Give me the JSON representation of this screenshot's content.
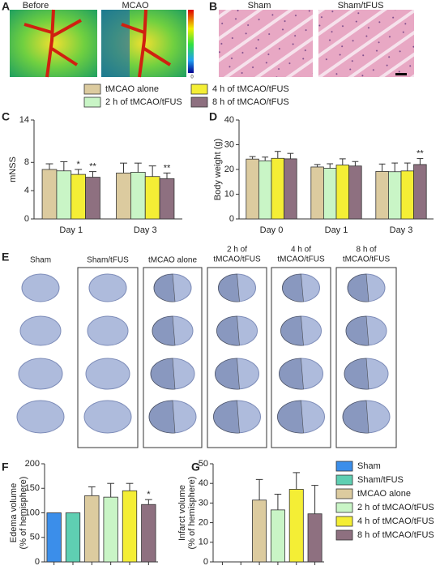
{
  "panel_labels": [
    "A",
    "B",
    "C",
    "D",
    "E",
    "F",
    "G"
  ],
  "panel_a": {
    "titles": [
      "Before",
      "MCAO"
    ],
    "colorbar_min": "0"
  },
  "panel_b": {
    "titles": [
      "Sham",
      "Sham/tFUS"
    ]
  },
  "panel_e": {
    "headings": [
      [
        "Sham"
      ],
      [
        "Sham/tFUS"
      ],
      [
        "tMCAO alone"
      ],
      [
        "2 h of",
        "tMCAO/tFUS"
      ],
      [
        "4 h of",
        "tMCAO/tFUS"
      ],
      [
        "8 h of",
        "tMCAO/tFUS"
      ]
    ]
  },
  "chart_data": [
    {
      "type": "bar",
      "ylabel": [
        "mNSS"
      ],
      "categories": [
        "Day 1",
        "Day 3"
      ],
      "ylim": [
        0,
        14
      ],
      "yticks": [
        0,
        4,
        8,
        14
      ],
      "series": [
        {
          "name": "tMCAO alone",
          "color": "#dccb9f",
          "values": [
            7.0,
            6.5
          ],
          "errors": [
            0.8,
            1.4
          ],
          "annotations": [
            null,
            null
          ]
        },
        {
          "name": "2 h of tMCAO/tFUS",
          "color": "#c9f5c6",
          "values": [
            6.8,
            6.6
          ],
          "errors": [
            1.3,
            1.3
          ],
          "annotations": [
            null,
            null
          ]
        },
        {
          "name": "4 h of tMCAO/tFUS",
          "color": "#f4ee35",
          "values": [
            6.3,
            6.0
          ],
          "errors": [
            0.7,
            1.5
          ],
          "annotations": [
            "*",
            null
          ]
        },
        {
          "name": "8 h of tMCAO/tFUS",
          "color": "#8e7080",
          "values": [
            5.9,
            5.7
          ],
          "errors": [
            0.8,
            0.8
          ],
          "annotations": [
            "**",
            "**"
          ]
        }
      ]
    },
    {
      "type": "bar",
      "ylabel": [
        "Body weight (g)"
      ],
      "categories": [
        "Day 0",
        "Day 1",
        "Day 3"
      ],
      "ylim": [
        0,
        40
      ],
      "yticks": [
        0,
        10,
        20,
        30,
        40
      ],
      "series": [
        {
          "color": "#dccb9f",
          "values": [
            24.2,
            21.0,
            19.2
          ],
          "errors": [
            1.0,
            1.0,
            3.0
          ],
          "annotations": [
            null,
            null,
            null
          ]
        },
        {
          "color": "#c9f5c6",
          "values": [
            23.5,
            20.5,
            19.1
          ],
          "errors": [
            1.5,
            1.8,
            3.5
          ],
          "annotations": [
            null,
            null,
            null
          ]
        },
        {
          "color": "#f4ee35",
          "values": [
            24.5,
            21.8,
            19.4
          ],
          "errors": [
            2.8,
            2.5,
            3.2
          ],
          "annotations": [
            null,
            null,
            null
          ]
        },
        {
          "color": "#8e7080",
          "values": [
            24.3,
            21.4,
            22.0
          ],
          "errors": [
            2.2,
            1.8,
            2.4
          ],
          "annotations": [
            null,
            null,
            "**"
          ]
        }
      ]
    },
    {
      "type": "bar",
      "ylabel": [
        "Edema volume",
        "(% of hemisphere)"
      ],
      "categories": [
        null,
        null,
        null,
        null,
        null,
        null
      ],
      "ylim": [
        0,
        200
      ],
      "yticks": [
        0,
        50,
        100,
        150,
        200
      ],
      "values": [
        100,
        100,
        135,
        132,
        145,
        117
      ],
      "errors": [
        0,
        0,
        18,
        28,
        15,
        10
      ],
      "annotations": [
        null,
        null,
        null,
        null,
        null,
        "*"
      ],
      "colors": [
        "#3b8eea",
        "#5fcfb2",
        "#dccb9f",
        "#c9f5c6",
        "#f4ee35",
        "#8e7080"
      ],
      "legend": [
        "Sham",
        "Sham/tFUS",
        "tMCAO alone",
        "2 h of tMCAO/tFUS",
        "4 h of tMCAO/tFUS",
        "8 h of tMCAO/tFUS"
      ]
    },
    {
      "type": "bar",
      "ylabel": [
        "Infarct volume",
        "(% of hemisphere)"
      ],
      "categories": [
        null,
        null,
        null,
        null,
        null,
        null
      ],
      "ylim": [
        0,
        50
      ],
      "yticks": [
        0,
        10,
        20,
        30,
        40,
        50
      ],
      "values": [
        0,
        0,
        31.5,
        26.5,
        37,
        24.5
      ],
      "errors": [
        0,
        0,
        10.5,
        8,
        8.5,
        14.5
      ],
      "annotations": [
        null,
        null,
        null,
        null,
        null,
        null
      ],
      "colors": [
        "#3b8eea",
        "#5fcfb2",
        "#dccb9f",
        "#c9f5c6",
        "#f4ee35",
        "#8e7080"
      ]
    }
  ]
}
